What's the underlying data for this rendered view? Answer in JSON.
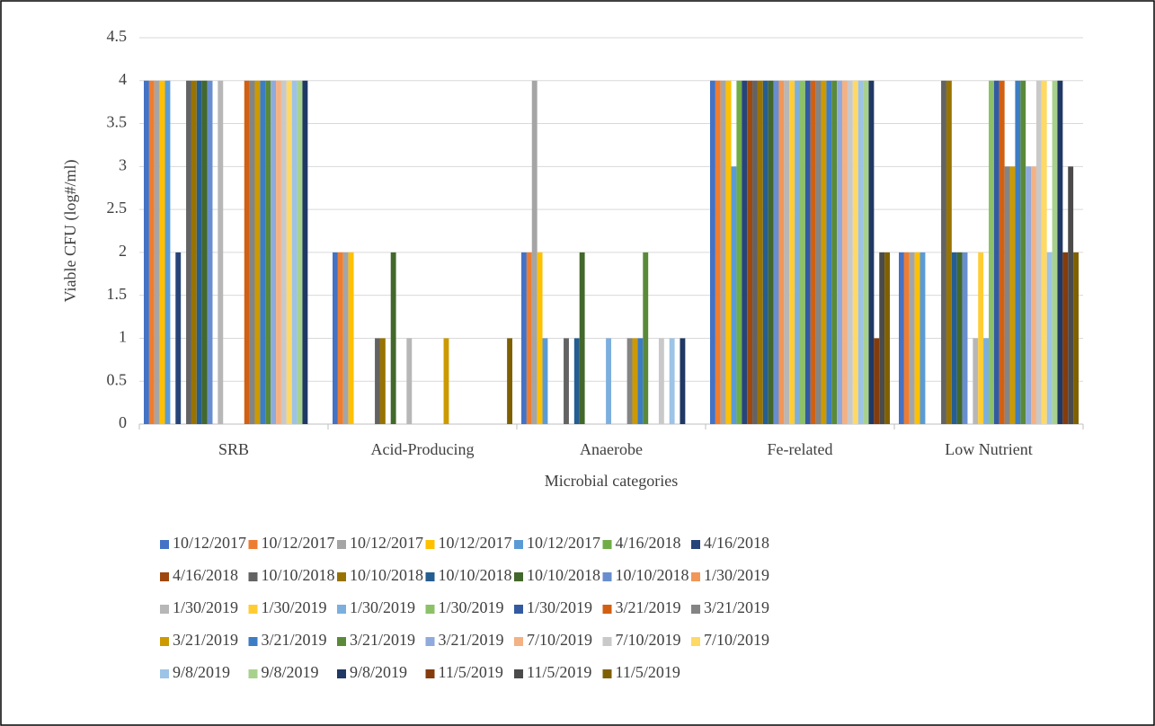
{
  "chart_data": {
    "type": "bar",
    "y_label": "Viable CFU (log#/ml)",
    "x_label": "Microbial categories",
    "categories": [
      "SRB",
      "Acid-Producing",
      "Anaerobe",
      "Fe-related",
      "Low Nutrient"
    ],
    "ylim": [
      0,
      4.5
    ],
    "yticks": [
      0,
      0.5,
      1,
      1.5,
      2,
      2.5,
      3,
      3.5,
      4,
      4.5
    ],
    "grid": true,
    "legend": "bottom",
    "series": [
      {
        "name": "10/12/2017",
        "color": "#4472c4",
        "values": [
          4,
          2,
          2,
          4,
          2
        ]
      },
      {
        "name": "10/12/2017",
        "color": "#ed7d31",
        "values": [
          4,
          2,
          2,
          4,
          2
        ]
      },
      {
        "name": "10/12/2017",
        "color": "#a5a5a5",
        "values": [
          4,
          2,
          4,
          4,
          2
        ]
      },
      {
        "name": "10/12/2017",
        "color": "#ffc000",
        "values": [
          4,
          2,
          2,
          4,
          2
        ]
      },
      {
        "name": "10/12/2017",
        "color": "#5b9bd5",
        "values": [
          4,
          0,
          1,
          3,
          2
        ]
      },
      {
        "name": "4/16/2018",
        "color": "#70ad47",
        "values": [
          0,
          0,
          0,
          4,
          0
        ]
      },
      {
        "name": "4/16/2018",
        "color": "#264478",
        "values": [
          2,
          0,
          0,
          4,
          0
        ]
      },
      {
        "name": "4/16/2018",
        "color": "#9e480e",
        "values": [
          0,
          0,
          0,
          4,
          0
        ]
      },
      {
        "name": "10/10/2018",
        "color": "#636363",
        "values": [
          4,
          1,
          1,
          4,
          4
        ]
      },
      {
        "name": "10/10/2018",
        "color": "#997300",
        "values": [
          4,
          1,
          0,
          4,
          4
        ]
      },
      {
        "name": "10/10/2018",
        "color": "#255e91",
        "values": [
          4,
          0,
          1,
          4,
          2
        ]
      },
      {
        "name": "10/10/2018",
        "color": "#43682b",
        "values": [
          4,
          2,
          2,
          4,
          2
        ]
      },
      {
        "name": "10/10/2018",
        "color": "#698ed0",
        "values": [
          4,
          0,
          0,
          4,
          2
        ]
      },
      {
        "name": "1/30/2019",
        "color": "#f1975a",
        "values": [
          0,
          0,
          0,
          4,
          0
        ]
      },
      {
        "name": "1/30/2019",
        "color": "#b7b7b7",
        "values": [
          4,
          1,
          0,
          4,
          1
        ]
      },
      {
        "name": "1/30/2019",
        "color": "#ffcd33",
        "values": [
          0,
          0,
          0,
          4,
          2
        ]
      },
      {
        "name": "1/30/2019",
        "color": "#7cafdd",
        "values": [
          0,
          0,
          1,
          4,
          1
        ]
      },
      {
        "name": "1/30/2019",
        "color": "#8cc168",
        "values": [
          0,
          0,
          0,
          4,
          4
        ]
      },
      {
        "name": "1/30/2019",
        "color": "#335aa1",
        "values": [
          0,
          0,
          0,
          4,
          4
        ]
      },
      {
        "name": "3/21/2019",
        "color": "#d26012",
        "values": [
          4,
          0,
          0,
          4,
          4
        ]
      },
      {
        "name": "3/21/2019",
        "color": "#848484",
        "values": [
          4,
          0,
          1,
          4,
          3
        ]
      },
      {
        "name": "3/21/2019",
        "color": "#cc9a00",
        "values": [
          4,
          1,
          1,
          4,
          3
        ]
      },
      {
        "name": "3/21/2019",
        "color": "#3c7dc4",
        "values": [
          4,
          0,
          1,
          4,
          4
        ]
      },
      {
        "name": "3/21/2019",
        "color": "#5a8a39",
        "values": [
          4,
          0,
          2,
          4,
          4
        ]
      },
      {
        "name": "3/21/2019",
        "color": "#8faadc",
        "values": [
          4,
          0,
          0,
          4,
          3
        ]
      },
      {
        "name": "7/10/2019",
        "color": "#f4b183",
        "values": [
          4,
          0,
          0,
          4,
          3
        ]
      },
      {
        "name": "7/10/2019",
        "color": "#c9c9c9",
        "values": [
          4,
          0,
          1,
          4,
          4
        ]
      },
      {
        "name": "7/10/2019",
        "color": "#ffd966",
        "values": [
          4,
          0,
          0,
          4,
          4
        ]
      },
      {
        "name": "9/8/2019",
        "color": "#9dc3e6",
        "values": [
          4,
          0,
          1,
          4,
          2
        ]
      },
      {
        "name": "9/8/2019",
        "color": "#a9d18e",
        "values": [
          4,
          0,
          0,
          4,
          4
        ]
      },
      {
        "name": "9/8/2019",
        "color": "#203864",
        "values": [
          4,
          0,
          1,
          4,
          4
        ]
      },
      {
        "name": "11/5/2019",
        "color": "#843c0c",
        "values": [
          0,
          0,
          0,
          1,
          2
        ]
      },
      {
        "name": "11/5/2019",
        "color": "#4b4b4b",
        "values": [
          0,
          0,
          0,
          2,
          3
        ]
      },
      {
        "name": "11/5/2019",
        "color": "#7f6000",
        "values": [
          0,
          1,
          0,
          2,
          2
        ]
      }
    ]
  }
}
